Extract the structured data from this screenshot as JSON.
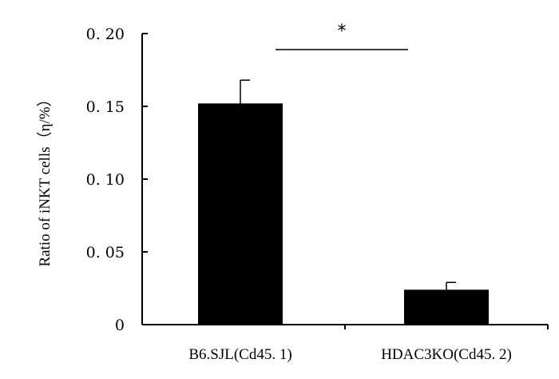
{
  "chart_data": {
    "type": "bar",
    "title": "",
    "xlabel": "",
    "ylabel": "Ratio of iNKT cells（η/%）",
    "categories": [
      "B6.SJL(Cd45. 1)",
      "HDAC3KO(Cd45. 2)"
    ],
    "values": [
      0.152,
      0.024
    ],
    "errors": [
      0.016,
      0.005
    ],
    "ylim": [
      0,
      0.2
    ],
    "yticks": [
      0,
      0.05,
      0.1,
      0.15,
      0.2
    ],
    "ytick_labels": [
      "0",
      "0. 05",
      "0. 10",
      "0. 15",
      "0. 20"
    ],
    "grid": false,
    "legend": "none",
    "bar_color": "#000000",
    "significance": {
      "label": "*",
      "between": [
        0,
        1
      ]
    }
  }
}
